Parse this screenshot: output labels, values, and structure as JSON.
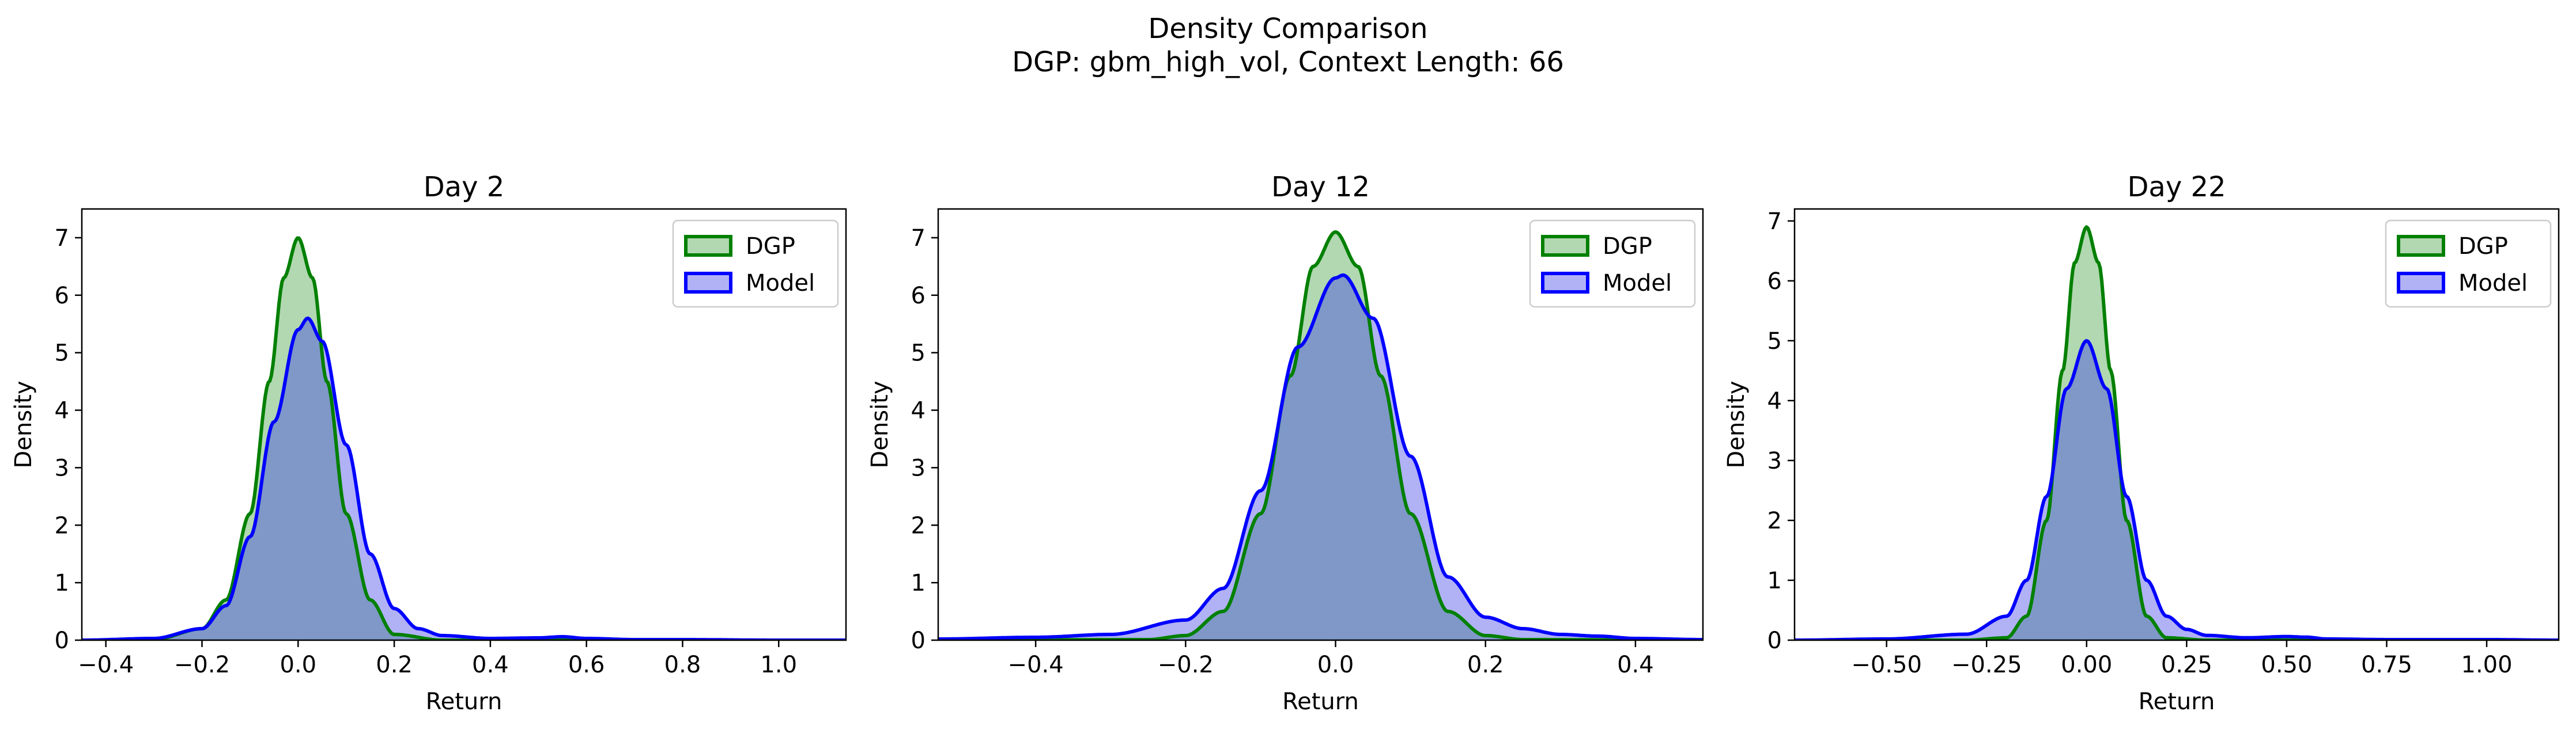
{
  "figure": {
    "title_line1": "Density Comparison",
    "title_line2": "DGP: gbm_high_vol, Context Length: 66"
  },
  "colors": {
    "dgp_line": "#008000",
    "dgp_fill": "#b1d8b1",
    "model_line": "#0000ff",
    "model_fill": "#b1b1f5",
    "overlap_fill": "#7f98c8"
  },
  "chart_data": [
    {
      "type": "area",
      "title": "Day 2",
      "xlabel": "Return",
      "ylabel": "Density",
      "xlim": [
        -0.45,
        1.14
      ],
      "ylim": [
        0,
        7.5
      ],
      "xticks": [
        -0.4,
        -0.2,
        0.0,
        0.2,
        0.4,
        0.6,
        0.8,
        1.0
      ],
      "xticklabels": [
        "−0.4",
        "−0.2",
        "0.0",
        "0.2",
        "0.4",
        "0.6",
        "0.8",
        "1.0"
      ],
      "yticks": [
        0,
        1,
        2,
        3,
        4,
        5,
        6,
        7
      ],
      "yticklabels": [
        "0",
        "1",
        "2",
        "3",
        "4",
        "5",
        "6",
        "7"
      ],
      "legend": "top-right",
      "grid": false,
      "series": [
        {
          "name": "DGP",
          "x": [
            -0.45,
            -0.3,
            -0.2,
            -0.15,
            -0.1,
            -0.06,
            -0.03,
            0.0,
            0.03,
            0.06,
            0.1,
            0.15,
            0.2,
            0.3,
            1.14
          ],
          "y": [
            0,
            0.01,
            0.2,
            0.7,
            2.2,
            4.5,
            6.3,
            7.0,
            6.3,
            4.5,
            2.2,
            0.7,
            0.1,
            0,
            0
          ]
        },
        {
          "name": "Model",
          "x": [
            -0.45,
            -0.3,
            -0.2,
            -0.15,
            -0.1,
            -0.05,
            0.0,
            0.02,
            0.05,
            0.1,
            0.15,
            0.2,
            0.25,
            0.3,
            0.4,
            0.5,
            0.55,
            0.6,
            0.7,
            0.8,
            1.0,
            1.14
          ],
          "y": [
            0,
            0.03,
            0.2,
            0.6,
            1.8,
            3.8,
            5.4,
            5.6,
            5.2,
            3.4,
            1.5,
            0.55,
            0.2,
            0.08,
            0.03,
            0.04,
            0.06,
            0.03,
            0.01,
            0.01,
            0,
            0
          ]
        }
      ]
    },
    {
      "type": "area",
      "title": "Day 12",
      "xlabel": "Return",
      "ylabel": "Density",
      "xlim": [
        -0.53,
        0.49
      ],
      "ylim": [
        0,
        7.5
      ],
      "xticks": [
        -0.4,
        -0.2,
        0.0,
        0.2,
        0.4
      ],
      "xticklabels": [
        "−0.4",
        "−0.2",
        "0.0",
        "0.2",
        "0.4"
      ],
      "yticks": [
        0,
        1,
        2,
        3,
        4,
        5,
        6,
        7
      ],
      "yticklabels": [
        "0",
        "1",
        "2",
        "3",
        "4",
        "5",
        "6",
        "7"
      ],
      "legend": "top-right",
      "grid": false,
      "series": [
        {
          "name": "DGP",
          "x": [
            -0.53,
            -0.25,
            -0.2,
            -0.15,
            -0.1,
            -0.06,
            -0.03,
            0.0,
            0.03,
            0.06,
            0.1,
            0.15,
            0.2,
            0.25,
            0.49
          ],
          "y": [
            0,
            0.01,
            0.08,
            0.5,
            2.2,
            4.6,
            6.5,
            7.1,
            6.5,
            4.6,
            2.2,
            0.5,
            0.08,
            0.01,
            0
          ]
        },
        {
          "name": "Model",
          "x": [
            -0.53,
            -0.4,
            -0.3,
            -0.2,
            -0.15,
            -0.1,
            -0.05,
            0.0,
            0.01,
            0.05,
            0.1,
            0.15,
            0.2,
            0.25,
            0.3,
            0.35,
            0.4,
            0.49
          ],
          "y": [
            0.02,
            0.05,
            0.1,
            0.35,
            0.9,
            2.6,
            5.1,
            6.3,
            6.35,
            5.6,
            3.2,
            1.1,
            0.4,
            0.2,
            0.1,
            0.07,
            0.03,
            0.01
          ]
        }
      ]
    },
    {
      "type": "area",
      "title": "Day 22",
      "xlabel": "Return",
      "ylabel": "Density",
      "xlim": [
        -0.73,
        1.18
      ],
      "ylim": [
        0,
        7.2
      ],
      "xticks": [
        -0.5,
        -0.25,
        0.0,
        0.25,
        0.5,
        0.75,
        1.0
      ],
      "xticklabels": [
        "−0.50",
        "−0.25",
        "0.00",
        "0.25",
        "0.50",
        "0.75",
        "1.00"
      ],
      "yticks": [
        0,
        1,
        2,
        3,
        4,
        5,
        6,
        7
      ],
      "yticklabels": [
        "0",
        "1",
        "2",
        "3",
        "4",
        "5",
        "6",
        "7"
      ],
      "legend": "top-right",
      "grid": false,
      "series": [
        {
          "name": "DGP",
          "x": [
            -0.73,
            -0.3,
            -0.2,
            -0.15,
            -0.1,
            -0.06,
            -0.03,
            0.0,
            0.03,
            0.06,
            0.1,
            0.15,
            0.2,
            0.3,
            1.18
          ],
          "y": [
            0,
            0,
            0.04,
            0.4,
            2.0,
            4.5,
            6.3,
            6.9,
            6.3,
            4.5,
            2.0,
            0.4,
            0.04,
            0,
            0
          ]
        },
        {
          "name": "Model",
          "x": [
            -0.73,
            -0.5,
            -0.3,
            -0.2,
            -0.15,
            -0.1,
            -0.05,
            0.0,
            0.05,
            0.1,
            0.15,
            0.2,
            0.25,
            0.3,
            0.4,
            0.5,
            0.55,
            0.6,
            0.75,
            1.0,
            1.18
          ],
          "y": [
            0,
            0.02,
            0.1,
            0.4,
            1.0,
            2.4,
            4.2,
            5.0,
            4.2,
            2.4,
            1.0,
            0.4,
            0.18,
            0.08,
            0.04,
            0.06,
            0.05,
            0.02,
            0.01,
            0.01,
            0
          ]
        }
      ]
    }
  ]
}
